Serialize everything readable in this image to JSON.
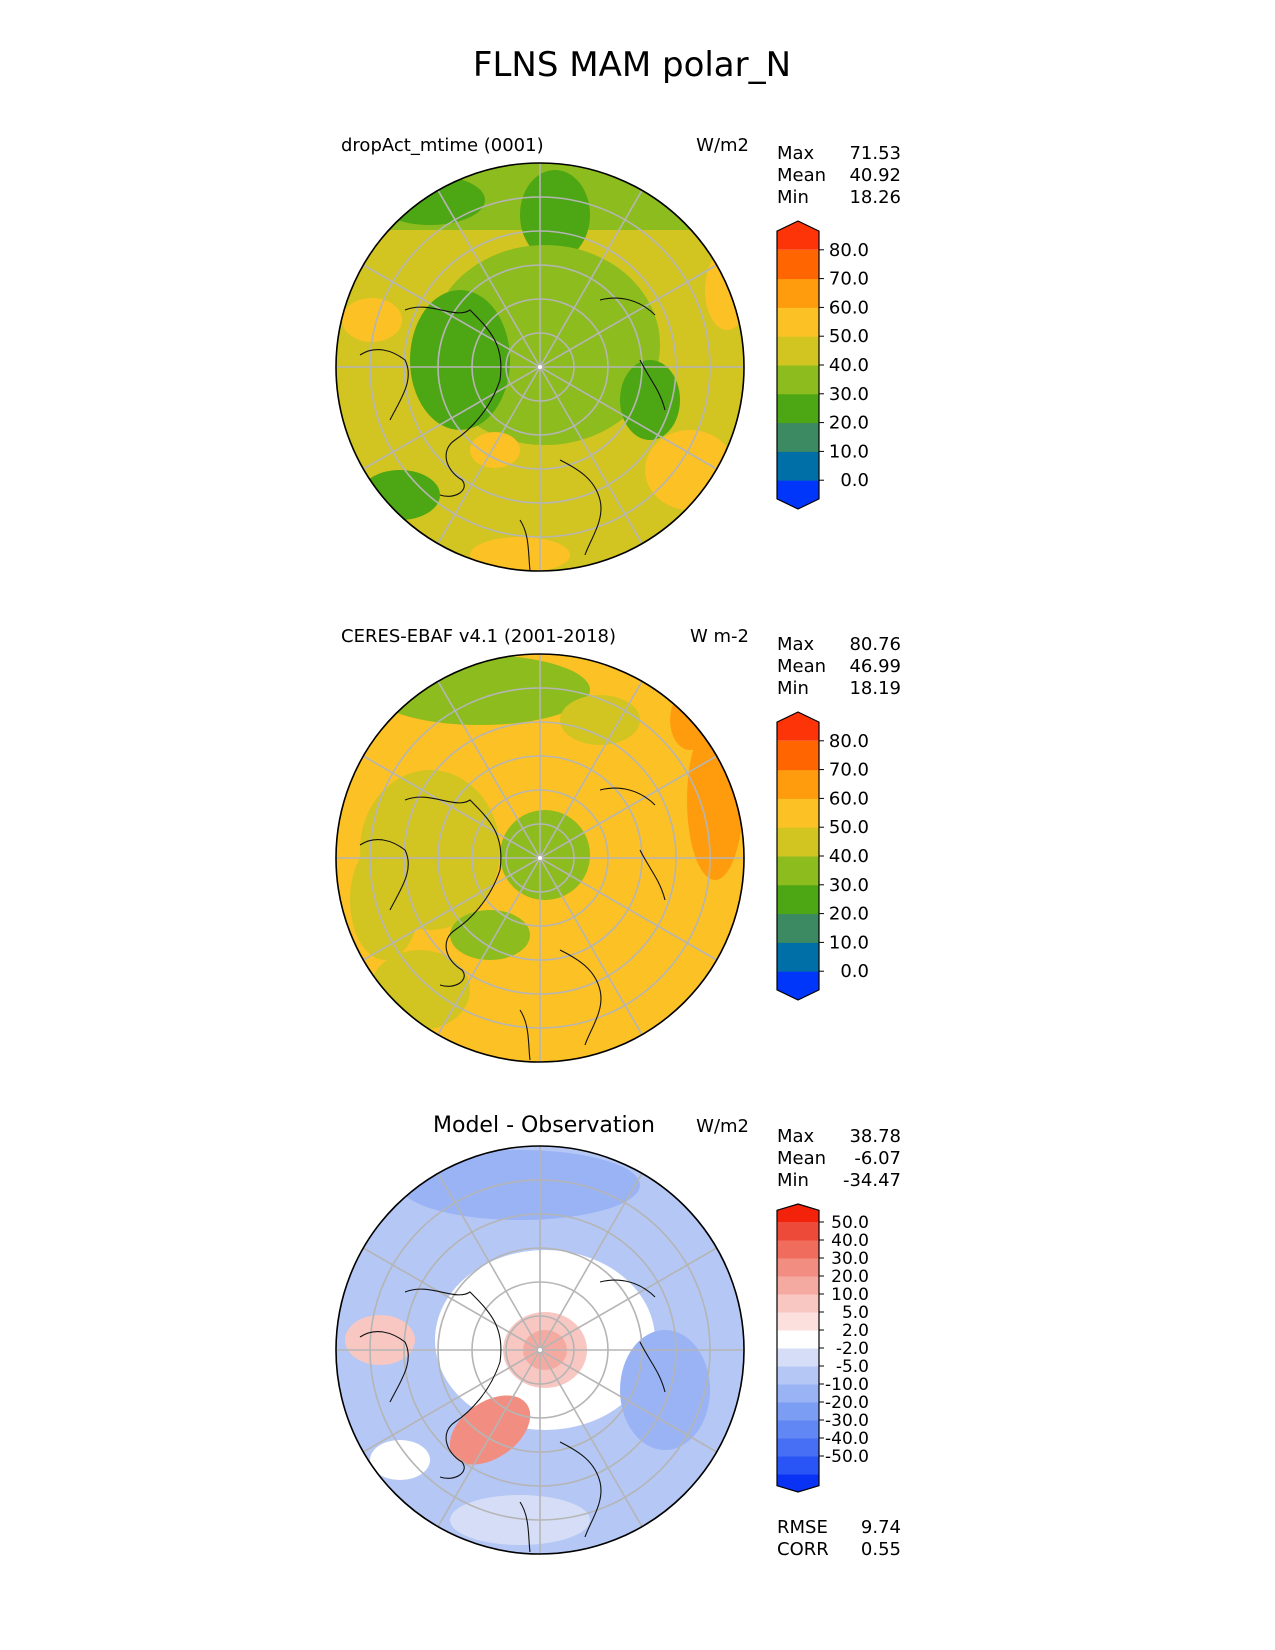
{
  "figure": {
    "title": "FLNS MAM polar_N"
  },
  "panels": [
    {
      "title": "dropAct_mtime (0001)",
      "units": "W/m2",
      "stats": {
        "labels": [
          "Max",
          "Mean",
          "Min"
        ],
        "values": [
          "71.53",
          "40.92",
          "18.26"
        ]
      },
      "colorbar": {
        "ticks": [
          "80.0",
          "70.0",
          "60.0",
          "50.0",
          "40.0",
          "30.0",
          "20.0",
          "10.0",
          "0.0"
        ],
        "colors": [
          "#0035fa",
          "#006ea7",
          "#3c8a61",
          "#4da614",
          "#8cbc1e",
          "#d2c522",
          "#fcc125",
          "#fe9c0e",
          "#ff6602",
          "#fe3409"
        ]
      }
    },
    {
      "title": "CERES-EBAF v4.1 (2001-2018)",
      "units": "W m-2",
      "stats": {
        "labels": [
          "Max",
          "Mean",
          "Min"
        ],
        "values": [
          "80.76",
          "46.99",
          "18.19"
        ]
      },
      "colorbar": {
        "ticks": [
          "80.0",
          "70.0",
          "60.0",
          "50.0",
          "40.0",
          "30.0",
          "20.0",
          "10.0",
          "0.0"
        ],
        "colors": [
          "#0035fa",
          "#006ea7",
          "#3c8a61",
          "#4da614",
          "#8cbc1e",
          "#d2c522",
          "#fcc125",
          "#fe9c0e",
          "#ff6602",
          "#fe3409"
        ]
      }
    },
    {
      "title": "Model - Observation",
      "units": "W/m2",
      "stats": {
        "labels": [
          "Max",
          "Mean",
          "Min"
        ],
        "values": [
          "38.78",
          "-6.07",
          "-34.47"
        ]
      },
      "colorbar": {
        "ticks": [
          "50.0",
          "40.0",
          "30.0",
          "20.0",
          "10.0",
          "5.0",
          "2.0",
          "-2.0",
          "-5.0",
          "-10.0",
          "-20.0",
          "-30.0",
          "-40.0",
          "-50.0"
        ],
        "colors": [
          "#0a32f5",
          "#2a55f6",
          "#476ff6",
          "#6187f5",
          "#7c9df4",
          "#99b3f4",
          "#b5c7f5",
          "#d6def7",
          "#ffffff",
          "#fbe0de",
          "#f8c7c1",
          "#f5aaa1",
          "#f28e81",
          "#f06d5e",
          "#ee4a39",
          "#f3230b"
        ]
      },
      "metrics": {
        "labels": [
          "RMSE",
          "CORR"
        ],
        "values": [
          "9.74",
          "0.55"
        ]
      }
    }
  ],
  "chart_data": [
    {
      "type": "heatmap",
      "title": "dropAct_mtime (0001)",
      "projection": "north polar stereographic",
      "units": "W/m2",
      "stats": {
        "max": 71.53,
        "mean": 40.92,
        "min": 18.26
      },
      "colorbar_levels": [
        0,
        10,
        20,
        30,
        40,
        50,
        60,
        70,
        80
      ],
      "colorbar_extend": "both"
    },
    {
      "type": "heatmap",
      "title": "CERES-EBAF v4.1 (2001-2018)",
      "projection": "north polar stereographic",
      "units": "W m-2",
      "stats": {
        "max": 80.76,
        "mean": 46.99,
        "min": 18.19
      },
      "colorbar_levels": [
        0,
        10,
        20,
        30,
        40,
        50,
        60,
        70,
        80
      ],
      "colorbar_extend": "both"
    },
    {
      "type": "heatmap",
      "title": "Model - Observation",
      "projection": "north polar stereographic",
      "units": "W/m2",
      "stats": {
        "max": 38.78,
        "mean": -6.07,
        "min": -34.47
      },
      "colorbar_levels": [
        -50,
        -40,
        -30,
        -20,
        -10,
        -5,
        -2,
        2,
        5,
        10,
        20,
        30,
        40,
        50
      ],
      "colorbar_extend": "both",
      "metrics": {
        "rmse": 9.74,
        "corr": 0.55
      }
    }
  ]
}
